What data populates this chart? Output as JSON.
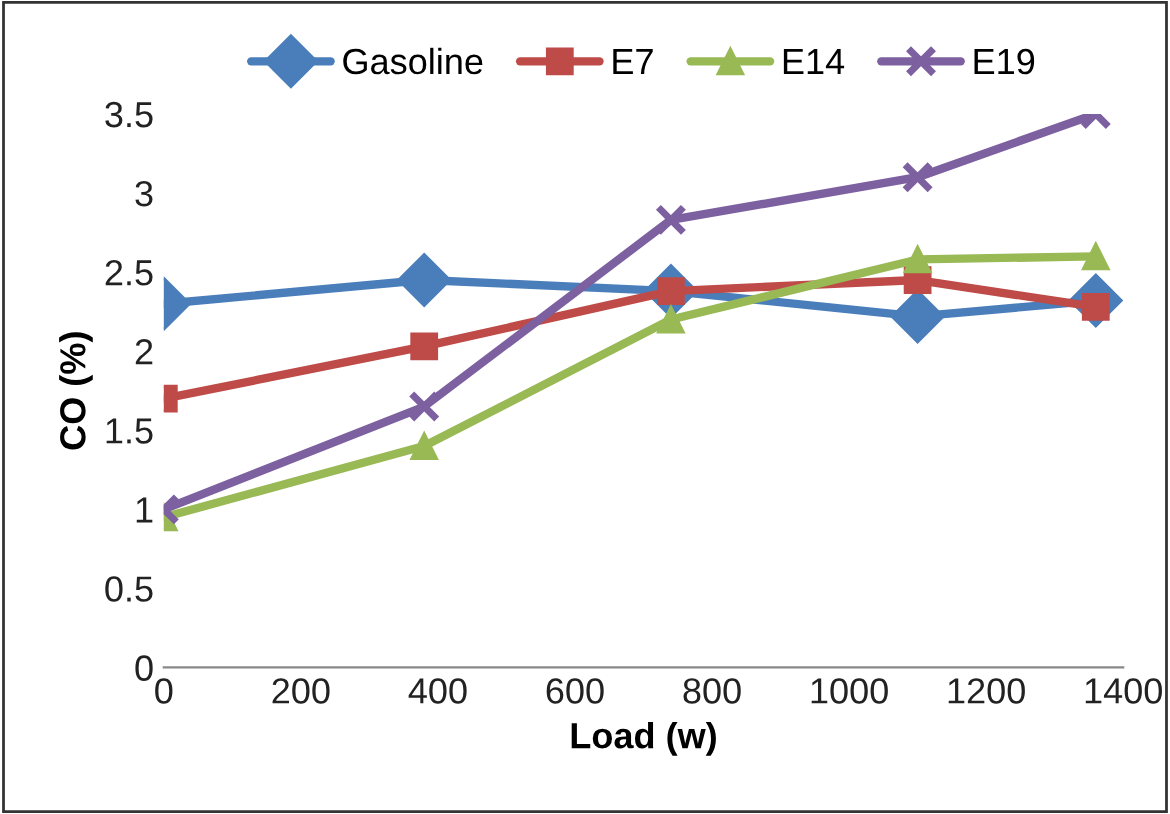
{
  "chart_data": {
    "type": "line",
    "xlabel": "Load (w)",
    "ylabel": "CO (%)",
    "x": [
      0,
      380,
      740,
      1100,
      1360
    ],
    "xlim": [
      0,
      1400
    ],
    "xticks": [
      0,
      200,
      400,
      600,
      800,
      1000,
      1200,
      1400
    ],
    "ylim": [
      0,
      3.5
    ],
    "yticks": [
      0,
      0.5,
      1,
      1.5,
      2,
      2.5,
      3,
      3.5
    ],
    "grid": false,
    "legend": "top",
    "line_style": "solid",
    "series": [
      {
        "name": "Gasoline",
        "color": "#4a7ebb",
        "marker": "diamond",
        "values": [
          2.3,
          2.45,
          2.38,
          2.22,
          2.32
        ]
      },
      {
        "name": "E7",
        "color": "#be4b48",
        "marker": "square",
        "values": [
          1.7,
          2.03,
          2.38,
          2.45,
          2.28
        ]
      },
      {
        "name": "E14",
        "color": "#98b954",
        "marker": "triangle",
        "values": [
          0.95,
          1.4,
          2.2,
          2.58,
          2.6
        ]
      },
      {
        "name": "E19",
        "color": "#7d60a0",
        "marker": "cross",
        "values": [
          1.0,
          1.65,
          2.83,
          3.1,
          3.5
        ]
      }
    ]
  }
}
